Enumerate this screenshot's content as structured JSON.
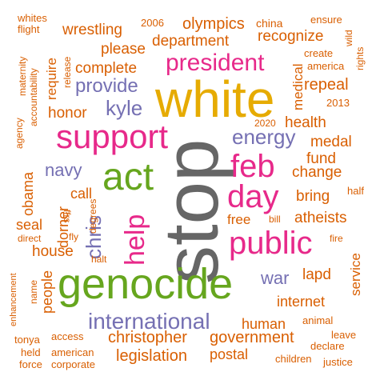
{
  "colors": {
    "orange": "#d95f02",
    "purple": "#7570b3",
    "pink": "#e7298a",
    "green": "#66a61e",
    "gold": "#e6ab02",
    "grey": "#666666",
    "background": "#ffffff"
  },
  "words": [
    {
      "text": "stop",
      "color": "grey"
    },
    {
      "text": "white",
      "color": "gold"
    },
    {
      "text": "genocide",
      "color": "green"
    },
    {
      "text": "act",
      "color": "green"
    },
    {
      "text": "support",
      "color": "pink"
    },
    {
      "text": "president",
      "color": "pink"
    },
    {
      "text": "feb",
      "color": "pink"
    },
    {
      "text": "day",
      "color": "pink"
    },
    {
      "text": "public",
      "color": "pink"
    },
    {
      "text": "help",
      "color": "pink"
    },
    {
      "text": "international",
      "color": "purple"
    },
    {
      "text": "energy",
      "color": "purple"
    },
    {
      "text": "provide",
      "color": "purple"
    },
    {
      "text": "kyle",
      "color": "purple"
    },
    {
      "text": "navy",
      "color": "purple"
    },
    {
      "text": "chris",
      "color": "purple"
    },
    {
      "text": "war",
      "color": "purple"
    },
    {
      "text": "christopher",
      "color": "orange"
    },
    {
      "text": "legislation",
      "color": "orange"
    },
    {
      "text": "government",
      "color": "orange"
    },
    {
      "text": "olympics",
      "color": "orange"
    },
    {
      "text": "wrestling",
      "color": "orange"
    },
    {
      "text": "department",
      "color": "orange"
    },
    {
      "text": "recognize",
      "color": "orange"
    },
    {
      "text": "please",
      "color": "orange"
    },
    {
      "text": "complete",
      "color": "orange"
    },
    {
      "text": "honor",
      "color": "orange"
    },
    {
      "text": "repeal",
      "color": "orange"
    },
    {
      "text": "health",
      "color": "orange"
    },
    {
      "text": "medal",
      "color": "orange"
    },
    {
      "text": "fund",
      "color": "orange"
    },
    {
      "text": "change",
      "color": "orange"
    },
    {
      "text": "bring",
      "color": "orange"
    },
    {
      "text": "atheists",
      "color": "orange"
    },
    {
      "text": "free",
      "color": "orange"
    },
    {
      "text": "house",
      "color": "orange"
    },
    {
      "text": "seal",
      "color": "orange"
    },
    {
      "text": "call",
      "color": "orange"
    },
    {
      "text": "obama",
      "color": "orange"
    },
    {
      "text": "dorner",
      "color": "orange"
    },
    {
      "text": "people",
      "color": "orange"
    },
    {
      "text": "human",
      "color": "orange"
    },
    {
      "text": "postal",
      "color": "orange"
    },
    {
      "text": "internet",
      "color": "orange"
    },
    {
      "text": "lapd",
      "color": "orange"
    },
    {
      "text": "service",
      "color": "orange"
    },
    {
      "text": "medical",
      "color": "orange"
    },
    {
      "text": "require",
      "color": "orange"
    },
    {
      "text": "whites",
      "color": "orange"
    },
    {
      "text": "flight",
      "color": "orange"
    },
    {
      "text": "2006",
      "color": "orange"
    },
    {
      "text": "china",
      "color": "orange"
    },
    {
      "text": "ensure",
      "color": "orange"
    },
    {
      "text": "wild",
      "color": "orange"
    },
    {
      "text": "rights",
      "color": "orange"
    },
    {
      "text": "create",
      "color": "orange"
    },
    {
      "text": "america",
      "color": "orange"
    },
    {
      "text": "2013",
      "color": "orange"
    },
    {
      "text": "2020",
      "color": "orange"
    },
    {
      "text": "maternity",
      "color": "orange"
    },
    {
      "text": "accountability",
      "color": "orange"
    },
    {
      "text": "release",
      "color": "orange"
    },
    {
      "text": "agency",
      "color": "orange"
    },
    {
      "text": "half",
      "color": "orange"
    },
    {
      "text": "bill",
      "color": "orange"
    },
    {
      "text": "fire",
      "color": "orange"
    },
    {
      "text": "ffrs",
      "color": "orange"
    },
    {
      "text": "degrees",
      "color": "orange"
    },
    {
      "text": "direct",
      "color": "orange"
    },
    {
      "text": "fly",
      "color": "orange"
    },
    {
      "text": "halt",
      "color": "orange"
    },
    {
      "text": "enhancement",
      "color": "orange"
    },
    {
      "text": "name",
      "color": "orange"
    },
    {
      "text": "access",
      "color": "orange"
    },
    {
      "text": "tonya",
      "color": "orange"
    },
    {
      "text": "held",
      "color": "orange"
    },
    {
      "text": "american",
      "color": "orange"
    },
    {
      "text": "force",
      "color": "orange"
    },
    {
      "text": "corporate",
      "color": "orange"
    },
    {
      "text": "animal",
      "color": "orange"
    },
    {
      "text": "leave",
      "color": "orange"
    },
    {
      "text": "declare",
      "color": "orange"
    },
    {
      "text": "children",
      "color": "orange"
    },
    {
      "text": "justice",
      "color": "orange"
    }
  ]
}
